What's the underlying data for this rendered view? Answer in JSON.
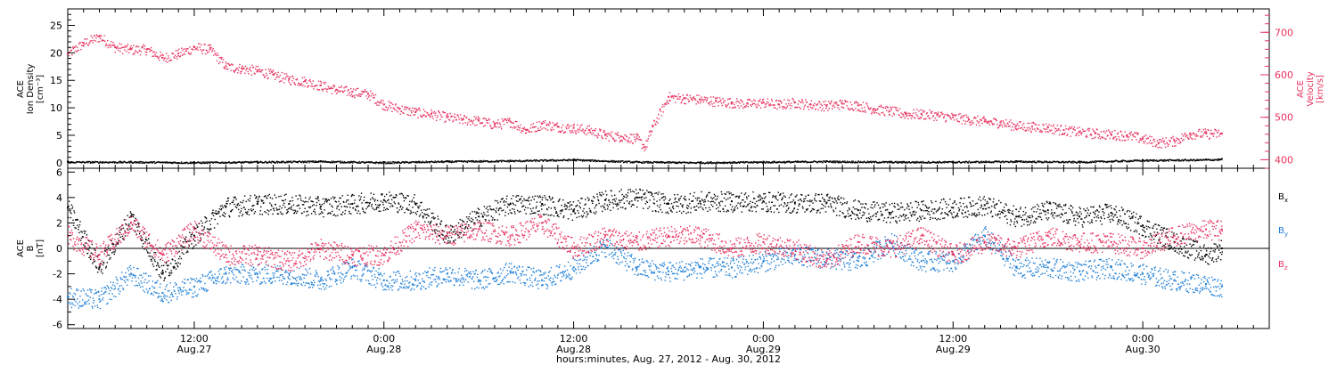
{
  "colors": {
    "axis": "#000000",
    "velocity": "#e8325e",
    "bx": "#000000",
    "by": "#1e7fd6",
    "bz": "#e8325e"
  },
  "chart_data": [
    {
      "type": "scatter",
      "panel": "ion-density-velocity",
      "left_axis": {
        "label_lines": [
          "ACE",
          "Ion Density",
          "[cm⁻³]"
        ],
        "ylim": [
          -1,
          28
        ],
        "ticks": [
          0,
          5,
          10,
          15,
          20,
          25
        ]
      },
      "right_axis": {
        "label_lines": [
          "ACE",
          "Velocity",
          "[km/s]"
        ],
        "ylim": [
          380,
          755
        ],
        "ticks": [
          400,
          500,
          600,
          700
        ],
        "color": "#e8325e"
      },
      "xlim_hours": [
        4,
        80
      ],
      "series": [
        {
          "axis": "right",
          "color": "#e8325e",
          "x_hours": [
            4,
            5,
            6,
            7,
            8,
            9,
            10,
            11,
            12,
            13,
            14,
            15,
            16,
            17,
            18,
            19,
            20,
            21,
            22,
            23,
            24,
            25,
            26,
            27,
            28,
            29,
            30,
            31,
            32,
            33,
            34,
            35,
            36,
            37,
            38,
            39,
            40,
            40.5,
            41,
            42,
            43,
            44,
            45,
            46,
            47,
            48,
            49,
            50,
            51,
            52,
            53,
            54,
            55,
            56,
            57,
            58,
            59,
            60,
            61,
            62,
            63,
            64,
            65,
            66,
            67,
            68,
            69,
            70,
            71,
            72,
            73,
            74,
            75,
            76,
            77
          ],
          "values": [
            650,
            675,
            690,
            665,
            660,
            660,
            640,
            650,
            665,
            660,
            620,
            615,
            610,
            600,
            590,
            585,
            575,
            565,
            560,
            555,
            530,
            520,
            512,
            508,
            500,
            495,
            492,
            483,
            490,
            470,
            485,
            478,
            475,
            470,
            458,
            455,
            450,
            430,
            480,
            548,
            545,
            542,
            538,
            535,
            532,
            535,
            530,
            535,
            530,
            528,
            532,
            528,
            520,
            515,
            508,
            508,
            505,
            500,
            495,
            490,
            488,
            480,
            478,
            476,
            470,
            466,
            462,
            460,
            458,
            450,
            440,
            445,
            462,
            462,
            462
          ]
        },
        {
          "axis": "left",
          "color": "#000000",
          "x_hours": [
            4,
            8,
            12,
            16,
            20,
            24,
            28,
            32,
            36,
            40,
            44,
            48,
            52,
            56,
            60,
            64,
            68,
            72,
            76,
            77
          ],
          "values": [
            0.2,
            0.2,
            0.1,
            0.2,
            0.3,
            0.1,
            0.3,
            0.4,
            0.6,
            0.2,
            0.1,
            0.2,
            0.3,
            0.2,
            0.2,
            0.3,
            0.2,
            0.5,
            0.6,
            0.7
          ]
        }
      ]
    },
    {
      "type": "scatter",
      "panel": "magnetic-field",
      "left_axis": {
        "label_lines": [
          "ACE",
          "B",
          "[nT]"
        ],
        "ylim": [
          -6.3,
          6.3
        ],
        "ticks": [
          -6,
          -4,
          -2,
          0,
          2,
          4,
          6
        ]
      },
      "xlim_hours": [
        4,
        80
      ],
      "series": [
        {
          "name": "Bx",
          "name_sub": "x",
          "color": "#000000",
          "x_hours": [
            4,
            6,
            8,
            10,
            12,
            14,
            16,
            18,
            20,
            22,
            24,
            26,
            28,
            30,
            32,
            34,
            36,
            38,
            40,
            42,
            44,
            46,
            48,
            50,
            52,
            54,
            56,
            58,
            60,
            62,
            64,
            66,
            68,
            70,
            72,
            74,
            76,
            77
          ],
          "values": [
            3.2,
            -1.5,
            2.5,
            -2.0,
            1.0,
            3.3,
            3.5,
            3.5,
            3.3,
            3.5,
            3.8,
            3.5,
            1.0,
            2.5,
            3.5,
            3.5,
            3.0,
            3.8,
            4.0,
            3.5,
            3.7,
            3.7,
            3.7,
            3.6,
            3.6,
            3.0,
            2.8,
            3.0,
            3.2,
            3.4,
            2.5,
            3.0,
            2.5,
            2.8,
            1.8,
            0.5,
            -0.5,
            0.0
          ]
        },
        {
          "name": "By",
          "name_sub": "y",
          "color": "#1e7fd6",
          "x_hours": [
            4,
            6,
            8,
            10,
            12,
            14,
            16,
            18,
            20,
            22,
            24,
            26,
            28,
            30,
            32,
            34,
            36,
            38,
            40,
            42,
            44,
            46,
            48,
            50,
            52,
            54,
            56,
            58,
            60,
            62,
            64,
            66,
            68,
            70,
            72,
            74,
            76,
            77
          ],
          "values": [
            -3.8,
            -4.0,
            -2.0,
            -3.5,
            -3.0,
            -2.0,
            -2.0,
            -2.0,
            -2.5,
            -1.5,
            -2.5,
            -2.5,
            -2.0,
            -2.5,
            -1.8,
            -2.5,
            -1.5,
            0.2,
            -1.5,
            -1.8,
            -1.5,
            -1.5,
            -1.0,
            -0.5,
            -0.8,
            -1.0,
            0.5,
            -1.0,
            -1.0,
            1.0,
            -1.5,
            -1.5,
            -1.8,
            -1.5,
            -2.0,
            -2.5,
            -2.8,
            -3.0
          ]
        },
        {
          "name": "Bz",
          "name_sub": "z",
          "color": "#e8325e",
          "x_hours": [
            4,
            6,
            8,
            10,
            12,
            14,
            16,
            18,
            20,
            22,
            24,
            26,
            28,
            30,
            32,
            34,
            36,
            38,
            40,
            42,
            44,
            46,
            48,
            50,
            52,
            54,
            56,
            58,
            60,
            62,
            64,
            66,
            68,
            70,
            72,
            74,
            76,
            77
          ],
          "values": [
            1.0,
            -0.5,
            2.0,
            -0.5,
            1.5,
            -0.5,
            -0.5,
            -1.0,
            0.0,
            -0.5,
            -0.5,
            1.5,
            1.0,
            1.5,
            1.0,
            2.0,
            0.0,
            1.0,
            0.5,
            1.0,
            1.0,
            0.0,
            0.5,
            0.0,
            -1.0,
            0.5,
            0.0,
            1.0,
            -0.5,
            0.5,
            0.0,
            1.0,
            0.5,
            0.5,
            0.0,
            1.0,
            1.5,
            1.5
          ]
        }
      ]
    }
  ],
  "x_axis": {
    "ticks": [
      {
        "hours": 12,
        "line1": "12:00",
        "line2": "Aug.27"
      },
      {
        "hours": 24,
        "line1": "0:00",
        "line2": "Aug.28"
      },
      {
        "hours": 36,
        "line1": "12:00",
        "line2": "Aug.28"
      },
      {
        "hours": 48,
        "line1": "0:00",
        "line2": "Aug.29"
      },
      {
        "hours": 60,
        "line1": "12:00",
        "line2": "Aug.29"
      },
      {
        "hours": 72,
        "line1": "0:00",
        "line2": "Aug.30"
      }
    ],
    "title": "hours:minutes, Aug. 27, 2012 - Aug. 30, 2012"
  }
}
